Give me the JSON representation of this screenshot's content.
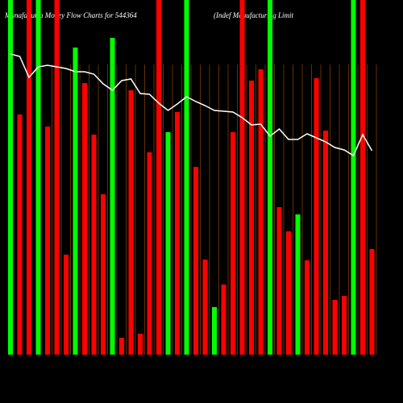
{
  "chart_data": {
    "type": "bar",
    "title": "MunafaSutra Money Flow Charts for 544364",
    "subtitle": "(Indef Manufacturing Limit",
    "ylim": [
      0,
      440
    ],
    "series": [
      {
        "name": "Money flow",
        "values": [
          440,
          298,
          440,
          440,
          283,
          440,
          124,
          381,
          337,
          273,
          199,
          393,
          21,
          328,
          26,
          251,
          440,
          276,
          301,
          440,
          233,
          118,
          59,
          87,
          276,
          440,
          340,
          354,
          440,
          183,
          153,
          174,
          117,
          343,
          278,
          68,
          73,
          440,
          440,
          131
        ],
        "colors": [
          "#00ff00",
          "#ff0000",
          "#ff0000",
          "#00ff00",
          "#ff0000",
          "#ff0000",
          "#ff0000",
          "#00ff00",
          "#ff0000",
          "#ff0000",
          "#ff0000",
          "#00ff00",
          "#ff0000",
          "#ff0000",
          "#ff0000",
          "#ff0000",
          "#ff0000",
          "#00ff00",
          "#ff0000",
          "#00ff00",
          "#ff0000",
          "#ff0000",
          "#00ff00",
          "#ff0000",
          "#ff0000",
          "#ff0000",
          "#ff0000",
          "#ff0000",
          "#00ff00",
          "#ff0000",
          "#ff0000",
          "#00ff00",
          "#ff0000",
          "#ff0000",
          "#ff0000",
          "#ff0000",
          "#ff0000",
          "#00ff00",
          "#ff0000",
          "#ff0000"
        ]
      },
      {
        "name": "Price",
        "color": "#ffffff",
        "values": [
          373,
          370,
          344,
          357,
          359,
          357,
          355,
          351,
          351,
          348,
          336,
          328,
          340,
          342,
          324,
          323,
          312,
          303,
          311,
          320,
          314,
          309,
          303,
          302,
          301,
          294,
          285,
          286,
          271,
          280,
          267,
          267,
          274,
          269,
          264,
          257,
          254,
          247,
          273,
          253
        ]
      }
    ]
  }
}
